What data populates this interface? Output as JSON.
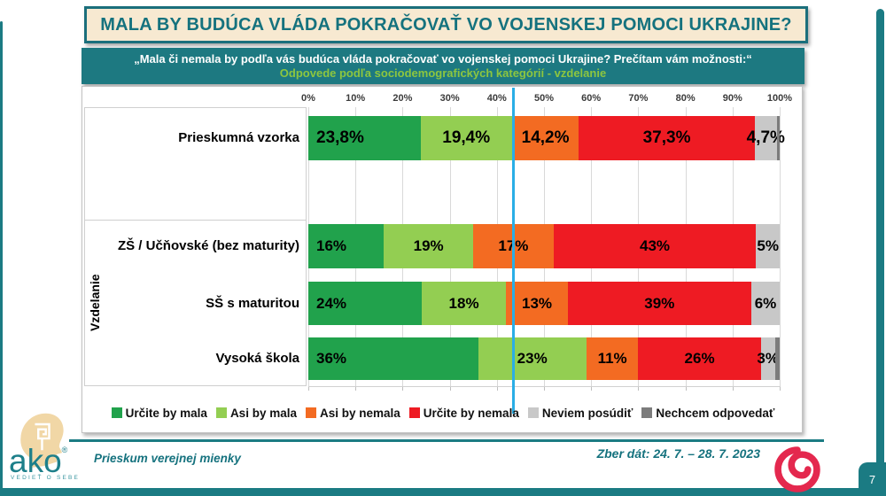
{
  "title": "MALA BY BUDÚCA VLÁDA POKRAČOVAŤ VO VOJENSKEJ POMOCI UKRAJINE?",
  "subtitle": {
    "line1": "„Mala či nemala by podľa vás budúca vláda pokračovať vo vojenskej pomoci Ukrajine? Prečítam vám možnosti:“",
    "line2": "Odpovede podľa sociodemografických kategórií - vzdelanie"
  },
  "footer": {
    "left": "Prieskum verejnej mienky",
    "right": "Zber dát: 24. 7. – 28. 7. 2023",
    "page_number": "7"
  },
  "logo": {
    "text": "ako",
    "tagline": "VEDIEŤ O SEBE"
  },
  "chart_data": {
    "type": "bar",
    "orientation": "horizontal",
    "stacked": true,
    "grid": true,
    "group_label": "Vzdelanie",
    "x_axis": {
      "range": [
        0,
        100
      ],
      "ticks": [
        "0%",
        "10%",
        "20%",
        "30%",
        "40%",
        "50%",
        "60%",
        "70%",
        "80%",
        "90%",
        "100%"
      ]
    },
    "categories": [
      "Prieskumná vzorka",
      "ZŠ / Učňovské (bez maturity)",
      "SŠ s maturitou",
      "Vysoká škola"
    ],
    "series": [
      {
        "name": "Určite by mala",
        "color": "#21a24c",
        "values": [
          23.8,
          16,
          24,
          36
        ],
        "labels": [
          "23,8%",
          "16%",
          "24%",
          "36%"
        ]
      },
      {
        "name": "Asi by mala",
        "color": "#93ce52",
        "values": [
          19.4,
          19,
          18,
          23
        ],
        "labels": [
          "19,4%",
          "19%",
          "18%",
          "23%"
        ]
      },
      {
        "name": "Asi by nemala",
        "color": "#f36b22",
        "values": [
          14.2,
          17,
          13,
          11
        ],
        "labels": [
          "14,2%",
          "17%",
          "13%",
          "11%"
        ]
      },
      {
        "name": "Určite by nemala",
        "color": "#ee1b23",
        "values": [
          37.3,
          43,
          39,
          26
        ],
        "labels": [
          "37,3%",
          "43%",
          "39%",
          "26%"
        ]
      },
      {
        "name": "Neviem posúdiť",
        "color": "#c8c8c8",
        "values": [
          4.7,
          5,
          6,
          3
        ],
        "labels": [
          "4,7%",
          "5%",
          "6%",
          "3%"
        ]
      },
      {
        "name": "Nechcem odpovedať",
        "color": "#7c7c7c",
        "values": [
          0.6,
          0,
          0,
          1
        ],
        "labels": [
          "",
          "",
          "",
          ""
        ]
      }
    ],
    "reference_line": {
      "position": 43.6,
      "color": "#2aaee6"
    },
    "legend_position": "bottom"
  }
}
